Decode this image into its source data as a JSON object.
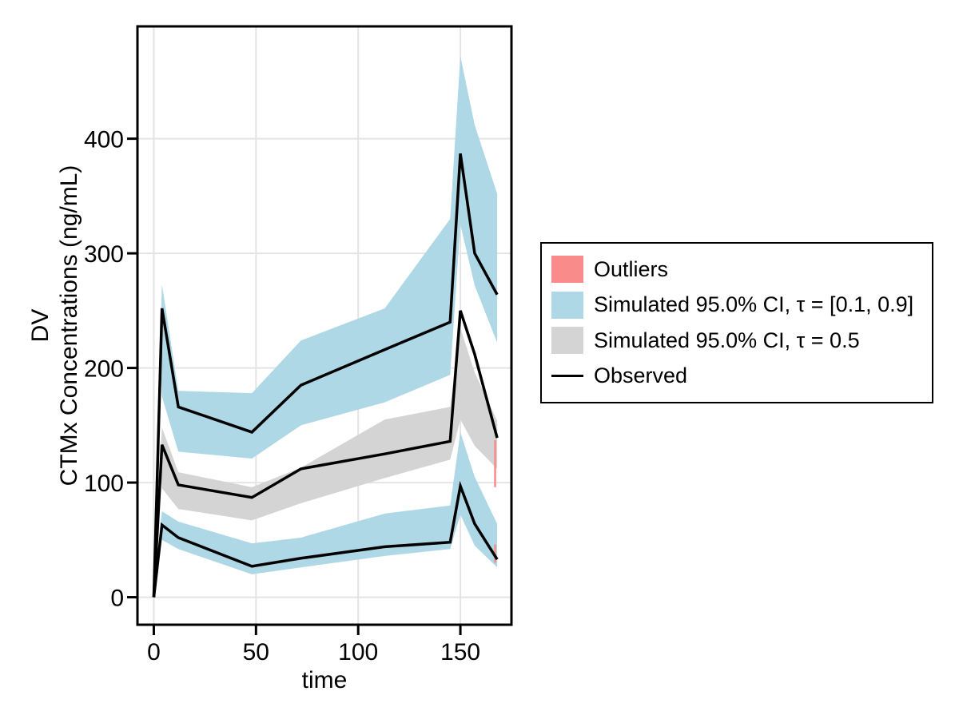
{
  "figure": {
    "background": "#ffffff",
    "frame_color": "#000000",
    "grid_color": "#e4e4e4"
  },
  "axes": {
    "x_label": "time",
    "y_label_lines": [
      "DV",
      "CTMx Concentrations (ng/mL)"
    ],
    "x_ticks": [
      0,
      50,
      100,
      150
    ],
    "y_ticks": [
      0,
      100,
      200,
      300,
      400
    ]
  },
  "legend": {
    "items": [
      {
        "label": "Outliers",
        "type": "fill",
        "color": "#F98B8B"
      },
      {
        "label": "Simulated 95.0% CI, τ = [0.1, 0.9]",
        "type": "fill",
        "color": "#AFD8E6"
      },
      {
        "label": "Simulated 95.0% CI, τ = 0.5",
        "type": "fill",
        "color": "#D4D4D4"
      },
      {
        "label": "Observed",
        "type": "line",
        "color": "#000000"
      }
    ]
  },
  "chart_data": {
    "type": "line",
    "title": "",
    "xlabel": "time",
    "ylabel": "DV / CTMx Concentrations (ng/mL)",
    "xlim": [
      -8,
      175
    ],
    "ylim": [
      -24,
      498
    ],
    "x_ticks": [
      0,
      50,
      100,
      150
    ],
    "y_ticks": [
      0,
      100,
      200,
      300,
      400
    ],
    "grid": true,
    "legend_position": "right-outside",
    "bands": [
      {
        "name": "Simulated 95.0% CI, tau = [0.1, 0.9] — upper (90th pct)",
        "color": "#AFD8E6",
        "x": [
          3,
          4,
          12,
          48,
          72,
          113,
          145,
          150,
          157,
          168
        ],
        "hi": [
          220,
          273,
          180,
          178,
          224,
          252,
          330,
          472,
          412,
          352
        ],
        "lo": [
          220,
          175,
          127,
          121,
          150,
          170,
          194,
          325,
          272,
          222
        ]
      },
      {
        "name": "Simulated 95.0% CI, tau = 0.5 — median",
        "color": "#D4D4D4",
        "x": [
          3,
          4,
          12,
          48,
          72,
          113,
          145,
          150,
          157,
          168
        ],
        "hi": [
          120,
          148,
          109,
          96,
          113,
          155,
          166,
          235,
          196,
          154
        ],
        "lo": [
          120,
          95,
          77,
          67,
          82,
          104,
          120,
          155,
          132,
          112
        ]
      },
      {
        "name": "Simulated 95.0% CI, tau = [0.1, 0.9] — lower (10th pct)",
        "color": "#AFD8E6",
        "x": [
          3,
          4,
          12,
          48,
          72,
          113,
          145,
          150,
          157,
          168
        ],
        "hi": [
          60,
          75,
          66,
          47,
          52,
          73,
          80,
          144,
          105,
          64
        ],
        "lo": [
          60,
          50,
          42,
          20,
          26,
          36,
          42,
          72,
          45,
          26
        ]
      }
    ],
    "observed_series": [
      {
        "name": "Observed 90th percentile",
        "color": "#000000",
        "x": [
          0,
          4,
          12,
          48,
          72,
          113,
          145,
          150,
          157,
          168
        ],
        "y": [
          0,
          252,
          166,
          144,
          185,
          216,
          240,
          387,
          300,
          264
        ]
      },
      {
        "name": "Observed median",
        "color": "#000000",
        "x": [
          0,
          4,
          12,
          48,
          72,
          113,
          145,
          150,
          157,
          168
        ],
        "y": [
          0,
          133,
          98,
          87,
          112,
          125,
          136,
          250,
          212,
          139
        ]
      },
      {
        "name": "Observed 10th percentile",
        "color": "#000000",
        "x": [
          0,
          4,
          12,
          48,
          72,
          113,
          145,
          150,
          157,
          168
        ],
        "y": [
          0,
          63,
          52,
          27,
          34,
          44,
          48,
          97,
          64,
          33
        ]
      }
    ],
    "outliers": {
      "color": "#F98B8B",
      "marks": [
        {
          "x": 167,
          "y1": 96,
          "y2": 137
        },
        {
          "x": 167,
          "y1": 30,
          "y2": 46
        }
      ]
    }
  }
}
